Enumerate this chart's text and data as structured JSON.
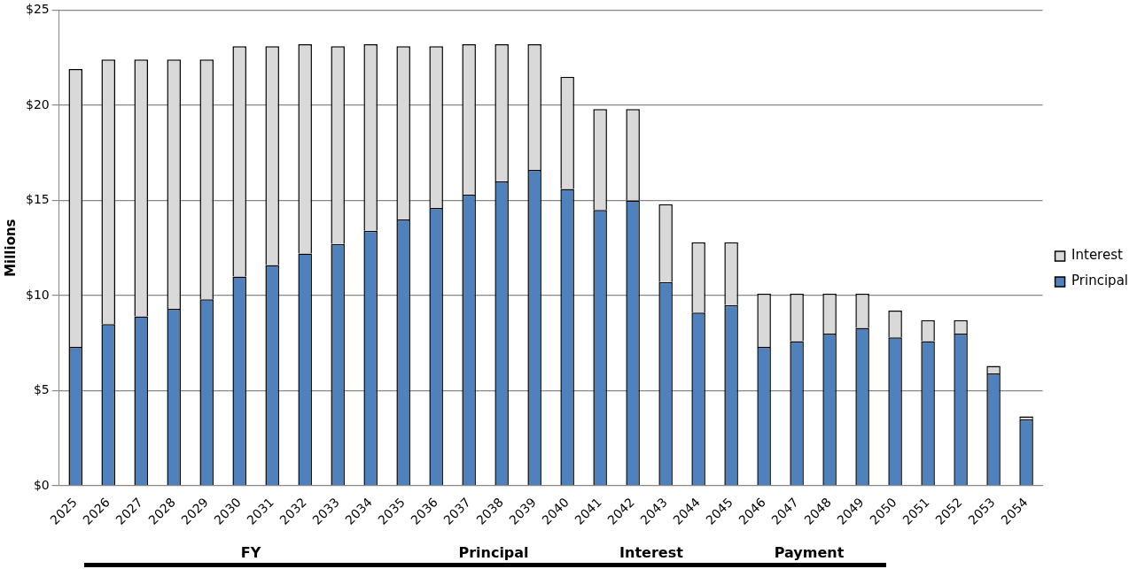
{
  "chart_data": {
    "type": "bar",
    "stacked": true,
    "ylabel": "Millions",
    "categories": [
      "2025",
      "2026",
      "2027",
      "2028",
      "2029",
      "2030",
      "2031",
      "2032",
      "2033",
      "2034",
      "2035",
      "2036",
      "2037",
      "2038",
      "2039",
      "2040",
      "2041",
      "2042",
      "2043",
      "2044",
      "2045",
      "2046",
      "2047",
      "2048",
      "2049",
      "2050",
      "2051",
      "2052",
      "2053",
      "2054"
    ],
    "series": [
      {
        "name": "Principal",
        "color": "#4f81bd",
        "values": [
          7.3,
          8.5,
          8.9,
          9.3,
          9.8,
          11.0,
          11.6,
          12.2,
          12.7,
          13.4,
          14.0,
          14.6,
          15.3,
          16.0,
          16.6,
          15.6,
          14.5,
          15.0,
          10.7,
          9.1,
          9.5,
          7.3,
          7.6,
          8.0,
          8.3,
          7.8,
          7.6,
          8.0,
          5.9,
          3.5
        ]
      },
      {
        "name": "Interest",
        "color": "#d9d9d9",
        "values": [
          14.6,
          13.9,
          13.5,
          13.1,
          12.6,
          12.1,
          11.5,
          11.0,
          10.4,
          9.8,
          9.1,
          8.5,
          7.9,
          7.2,
          6.6,
          5.9,
          5.3,
          4.8,
          4.1,
          3.7,
          3.3,
          2.8,
          2.5,
          2.1,
          1.8,
          1.4,
          1.1,
          0.7,
          0.4,
          0.15
        ]
      }
    ],
    "ylim": [
      0,
      25
    ],
    "yticks": [
      {
        "value": 0,
        "label": "$0"
      },
      {
        "value": 5,
        "label": "$5"
      },
      {
        "value": 10,
        "label": "$10"
      },
      {
        "value": 15,
        "label": "$15"
      },
      {
        "value": 20,
        "label": "$20"
      },
      {
        "value": 25,
        "label": "$25"
      }
    ],
    "grid": "y",
    "legend": "right",
    "annotations": [
      "FY",
      "Principal",
      "Interest",
      "Payment"
    ]
  }
}
